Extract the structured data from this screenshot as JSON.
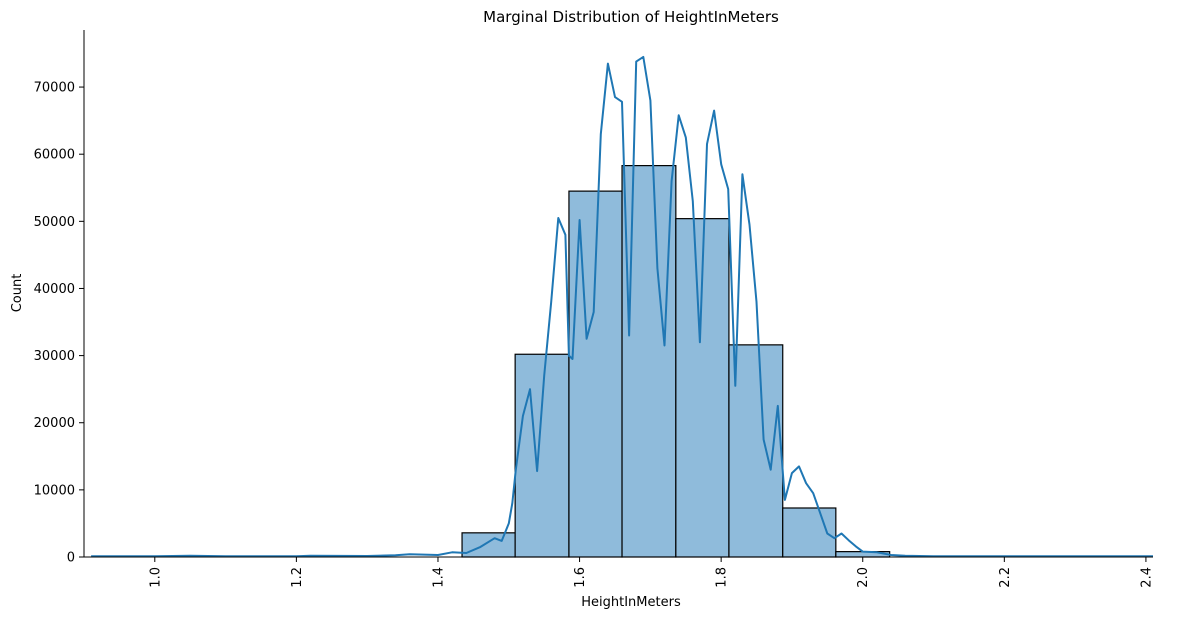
{
  "chart_data": {
    "type": "bar",
    "title": "Marginal Distribution of HeightInMeters",
    "xlabel": "HeightInMeters",
    "ylabel": "Count",
    "xlim": [
      0.9,
      2.41
    ],
    "ylim": [
      0,
      78500
    ],
    "x_ticks": [
      "1.0",
      "1.2",
      "1.4",
      "1.6",
      "1.8",
      "2.0",
      "2.2",
      "2.4"
    ],
    "x_tick_values": [
      1.0,
      1.2,
      1.4,
      1.6,
      1.8,
      2.0,
      2.2,
      2.4
    ],
    "y_ticks": [
      "0",
      "10000",
      "20000",
      "30000",
      "40000",
      "50000",
      "60000",
      "70000"
    ],
    "y_tick_values": [
      0,
      10000,
      20000,
      30000,
      40000,
      50000,
      60000,
      70000
    ],
    "bins": [
      {
        "x0": 1.434,
        "x1": 1.509,
        "count": 3600
      },
      {
        "x0": 1.509,
        "x1": 1.585,
        "count": 30200
      },
      {
        "x0": 1.585,
        "x1": 1.66,
        "count": 54500
      },
      {
        "x0": 1.66,
        "x1": 1.736,
        "count": 58300
      },
      {
        "x0": 1.736,
        "x1": 1.811,
        "count": 50400
      },
      {
        "x0": 1.811,
        "x1": 1.887,
        "count": 31600
      },
      {
        "x0": 1.887,
        "x1": 1.962,
        "count": 7300
      },
      {
        "x0": 1.962,
        "x1": 2.038,
        "count": 800
      }
    ],
    "kde": {
      "x": [
        0.91,
        1.0,
        1.05,
        1.1,
        1.2,
        1.22,
        1.3,
        1.34,
        1.36,
        1.4,
        1.42,
        1.44,
        1.46,
        1.48,
        1.49,
        1.5,
        1.505,
        1.51,
        1.52,
        1.53,
        1.54,
        1.55,
        1.56,
        1.57,
        1.58,
        1.585,
        1.59,
        1.6,
        1.61,
        1.62,
        1.63,
        1.64,
        1.65,
        1.66,
        1.67,
        1.68,
        1.69,
        1.7,
        1.71,
        1.72,
        1.73,
        1.74,
        1.75,
        1.76,
        1.77,
        1.78,
        1.79,
        1.8,
        1.81,
        1.82,
        1.83,
        1.84,
        1.85,
        1.86,
        1.87,
        1.88,
        1.89,
        1.9,
        1.91,
        1.92,
        1.93,
        1.94,
        1.95,
        1.96,
        1.97,
        1.98,
        1.99,
        2.0,
        2.02,
        2.04,
        2.06,
        2.1,
        2.2,
        2.3,
        2.41
      ],
      "y": [
        100,
        100,
        200,
        100,
        100,
        200,
        150,
        250,
        400,
        300,
        700,
        600,
        1500,
        2800,
        2400,
        5000,
        8000,
        13000,
        21000,
        25000,
        12800,
        27000,
        38000,
        50500,
        48000,
        30000,
        29500,
        50200,
        32500,
        36500,
        63000,
        73500,
        68500,
        67800,
        33000,
        73800,
        74500,
        68000,
        43000,
        31500,
        56000,
        65800,
        62500,
        53000,
        32000,
        61500,
        66500,
        58500,
        54800,
        25500,
        57000,
        49500,
        38000,
        17500,
        13000,
        22500,
        8500,
        12500,
        13500,
        11000,
        9500,
        6500,
        3500,
        2800,
        3500,
        2500,
        1600,
        800,
        700,
        300,
        200,
        100,
        100,
        100,
        100
      ]
    },
    "colors": {
      "bar_fill": "#8fbbdb",
      "bar_edge": "#000000",
      "kde_line": "#1f77b4"
    },
    "grid": false,
    "legend": "none"
  }
}
